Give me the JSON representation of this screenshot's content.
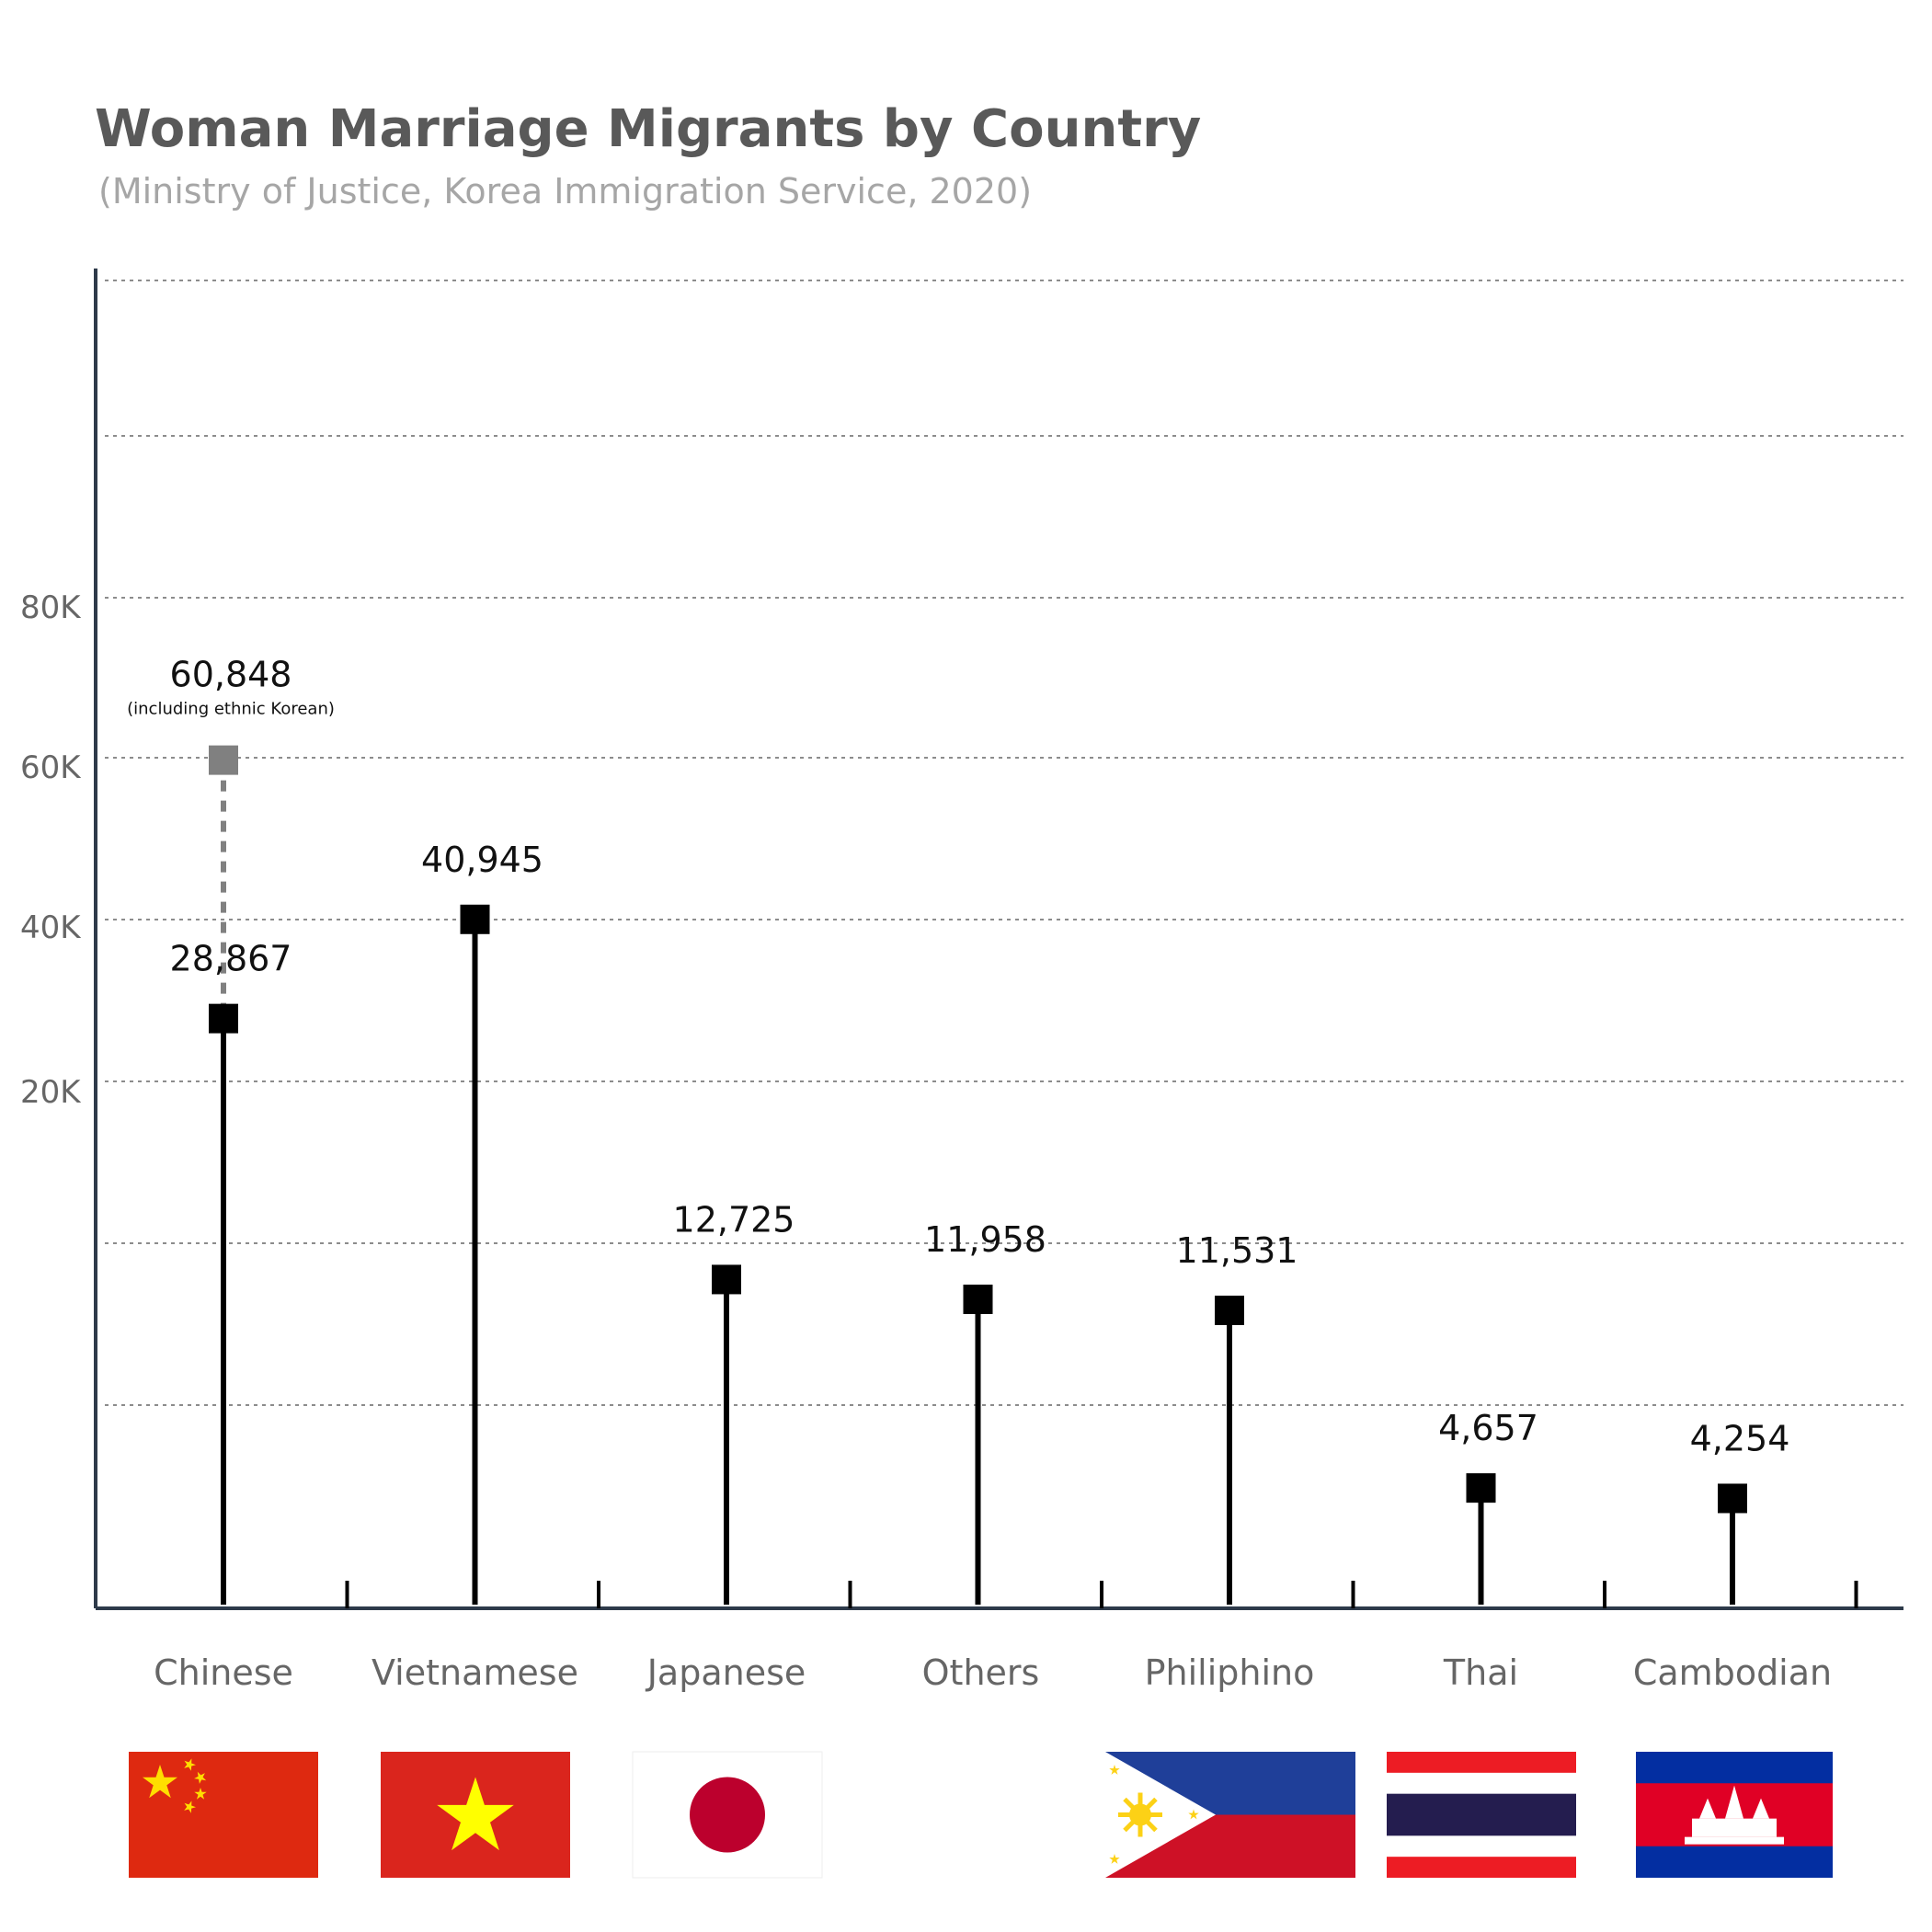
{
  "chart_data": {
    "type": "lollipop",
    "title": "Woman Marriage Migrants by Country",
    "subtitle": "(Ministry of Justice, Korea Immigration Service, 2020)",
    "categories": [
      "Chinese",
      "Vietnamese",
      "Japanese",
      "Others",
      "Philiphino",
      "Thai",
      "Cambodian"
    ],
    "values": [
      28867,
      40945,
      12725,
      11958,
      11531,
      4657,
      4254
    ],
    "value_labels": [
      "28,867",
      "40,945",
      "12,725",
      "11,958",
      "11,531",
      "4,657",
      "4,254"
    ],
    "secondary": {
      "category": "Chinese",
      "value": 60848,
      "label": "60,848",
      "note": "(including ethnic Korean)",
      "style": "dashed"
    },
    "y_ticks": [
      {
        "value": 20000,
        "label": "20K"
      },
      {
        "value": 40000,
        "label": "40K"
      },
      {
        "value": 60000,
        "label": "60K"
      },
      {
        "value": 80000,
        "label": "80K"
      }
    ],
    "xlabel": "",
    "ylabel": "",
    "grid": true,
    "flags": [
      "china",
      "vietnam",
      "japan",
      null,
      "philippines",
      "thailand",
      "cambodia"
    ],
    "colors": {
      "title": "#595959",
      "subtitle": "#a6a6a6",
      "stem": "#000000",
      "secondary": "#808080",
      "axis": "#2e3a4a",
      "grid": "#8c8c8c"
    }
  }
}
